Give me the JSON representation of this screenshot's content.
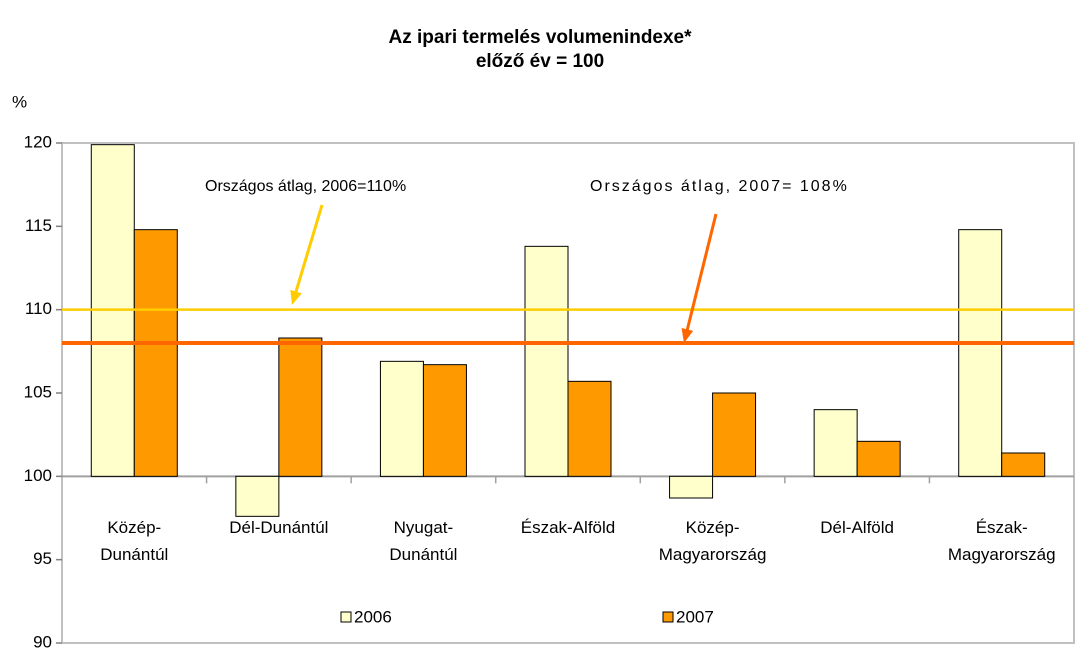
{
  "chart_data": {
    "type": "bar",
    "title": "Az ipari termelés volumenindexe*",
    "subtitle": "előző év = 100",
    "y_label": "%",
    "categories": [
      "Közép-\nDunántúl",
      "Dél-Dunántúl",
      "Nyugat-\nDunántúl",
      "Észak-Alföld",
      "Közép-\nMagyarország",
      "Dél-Alföld",
      "Észak-\nMagyarország"
    ],
    "series": [
      {
        "name": "2006",
        "color": "#ffffcc",
        "values": [
          119.9,
          97.6,
          106.9,
          113.8,
          98.7,
          104.0,
          114.8
        ]
      },
      {
        "name": "2007",
        "color": "#ff9900",
        "values": [
          114.8,
          108.3,
          106.7,
          105.7,
          105.0,
          102.1,
          101.4
        ]
      }
    ],
    "base": 100,
    "reference_lines": [
      {
        "value": 110,
        "color": "#ffcc00",
        "label": "Országos átlag, 2006=110%"
      },
      {
        "value": 108,
        "color": "#ff6600",
        "label": "Országos átlag, 2007= 108%"
      }
    ],
    "ylim": [
      90,
      120
    ],
    "yticks": [
      90,
      95,
      100,
      105,
      110,
      115,
      120
    ],
    "legend": "bottom"
  }
}
